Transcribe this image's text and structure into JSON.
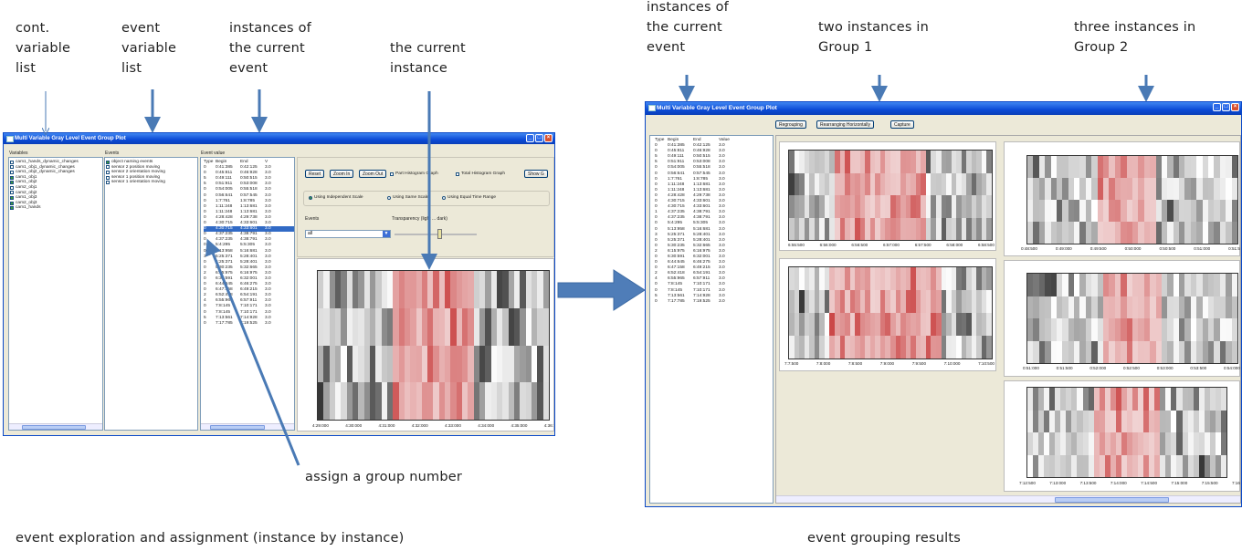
{
  "annotations": {
    "cont_var": [
      "cont.",
      "variable",
      "list"
    ],
    "event_var": [
      "event",
      "variable",
      "list"
    ],
    "instances": [
      "instances of",
      "the current",
      "event"
    ],
    "current_instance": [
      "the current",
      "instance"
    ],
    "instances_right": [
      "instances of",
      "the current",
      "event"
    ],
    "group1": [
      "two instances in",
      "Group 1"
    ],
    "group2": [
      "three instances in",
      "Group 2"
    ],
    "assign": "assign a group number",
    "caption_left": "event exploration and assignment  (instance by instance)",
    "caption_right": "event grouping results"
  },
  "left_window": {
    "title": "Multi Variable Gray Level Event Group Plot",
    "variables_label": "Variables",
    "events_label": "Events",
    "event_value_label": "Event value",
    "variables": [
      {
        "label": "cam1_hands_dynamic_changes",
        "checked": false
      },
      {
        "label": "cam1_obj1_dynamic_changes",
        "checked": false
      },
      {
        "label": "cam1_obj2_dynamic_changes",
        "checked": false
      },
      {
        "label": "cam1_obj1",
        "checked": true
      },
      {
        "label": "cam1_obj2",
        "checked": true
      },
      {
        "label": "cam2_obj1",
        "checked": false
      },
      {
        "label": "cam2_obj2",
        "checked": false
      },
      {
        "label": "cam1_obj3",
        "checked": true
      },
      {
        "label": "cam2_obj3",
        "checked": true
      },
      {
        "label": "cam1_hands",
        "checked": true
      }
    ],
    "events": [
      {
        "label": "object naming events",
        "checked": true
      },
      {
        "label": "sensor 2 position moving",
        "checked": false
      },
      {
        "label": "sensor 2 orientation moving",
        "checked": false
      },
      {
        "label": "sensor 1 position moving",
        "checked": false
      },
      {
        "label": "sensor 1 orientation moving",
        "checked": false
      }
    ],
    "table_headers": [
      "Type",
      "Begin",
      "End",
      "V"
    ],
    "table_rows": [
      [
        "0",
        "0:41:385",
        "0:42:125",
        "3.0"
      ],
      [
        "0",
        "0:45:811",
        "0:46:928",
        "3.0"
      ],
      [
        "5",
        "0:49:111",
        "0:50:515",
        "3.0"
      ],
      [
        "5",
        "0:51:911",
        "0:53:008",
        "3.0"
      ],
      [
        "0",
        "0:54:005",
        "0:55:518",
        "3.0"
      ],
      [
        "0",
        "0:56:641",
        "0:57:545",
        "3.0"
      ],
      [
        "0",
        "1:7:761",
        "1:8:785",
        "3.0"
      ],
      [
        "0",
        "1:11:248",
        "1:13:681",
        "3.0"
      ],
      [
        "0",
        "1:11:248",
        "1:13:681",
        "3.0"
      ],
      [
        "0",
        "4:28:428",
        "4:29:738",
        "3.0"
      ],
      [
        "0",
        "4:30:715",
        "4:33:601",
        "3.0"
      ],
      [
        "0",
        "4:30:715",
        "4:33:601",
        "3.0"
      ],
      [
        "0",
        "4:37:235",
        "4:38:791",
        "3.0"
      ],
      [
        "0",
        "4:37:235",
        "4:38:791",
        "3.0"
      ],
      [
        "0",
        "5:4:295",
        "5:5:305",
        "3.0"
      ],
      [
        "0",
        "5:13:958",
        "5:16:681",
        "3.0"
      ],
      [
        "3",
        "5:25:371",
        "5:28:401",
        "3.0"
      ],
      [
        "0",
        "5:25:371",
        "5:28:401",
        "3.0"
      ],
      [
        "0",
        "5:30:235",
        "5:32:665",
        "3.0"
      ],
      [
        "2",
        "6:15:975",
        "6:16:975",
        "3.0"
      ],
      [
        "0",
        "6:30:591",
        "6:32:001",
        "3.0"
      ],
      [
        "0",
        "6:44:645",
        "6:46:275",
        "3.0"
      ],
      [
        "0",
        "6:47:158",
        "6:49:215",
        "3.0"
      ],
      [
        "2",
        "6:52:418",
        "6:54:191",
        "3.0"
      ],
      [
        "4",
        "6:55:965",
        "6:57:911",
        "3.0"
      ],
      [
        "0",
        "7:8:145",
        "7:10:171",
        "3.0"
      ],
      [
        "0",
        "7:8:145",
        "7:10:171",
        "3.0"
      ],
      [
        "5",
        "7:13:561",
        "7:14:928",
        "3.0"
      ],
      [
        "0",
        "7:17:785",
        "7:19:525",
        "3.0"
      ]
    ],
    "selected_row": 11,
    "buttons": {
      "reset": "Reset",
      "zoom_in": "Zoom In",
      "zoom_out": "Zoom Out",
      "part_hist": "Part Histogram Graph",
      "total_hist": "Total Histogram Graph",
      "show": "Show G"
    },
    "scales": {
      "independent": "Using Independent Scale",
      "same": "Using Same Scale",
      "equal": "Using Equal Time Range"
    },
    "events_dropdown_label": "Events",
    "events_dropdown_value": "all",
    "transparency_label": "Transparency (light ... dark)",
    "x_ticks": [
      "4:29:000",
      "4:30:000",
      "4:31:000",
      "4:32:000",
      "4:33:000",
      "4:34:000",
      "4:35:000",
      "4:36:"
    ]
  },
  "right_window": {
    "title": "Multi Variable Gray Level Event Group Plot",
    "buttons": {
      "regrouping": "Regrouping",
      "rearranging": "Rearranging Horizontally",
      "capture": "Capture"
    },
    "table_headers": [
      "Type",
      "Begin",
      "End",
      "Value"
    ],
    "table_rows": [
      [
        "0",
        "0:41:385",
        "0:42:125",
        "3.0"
      ],
      [
        "0",
        "0:45:811",
        "0:46:928",
        "3.0"
      ],
      [
        "5",
        "0:49:111",
        "0:50:515",
        "3.0"
      ],
      [
        "5",
        "0:51:911",
        "0:53:008",
        "3.0"
      ],
      [
        "0",
        "0:54:005",
        "0:55:518",
        "3.0"
      ],
      [
        "0",
        "0:56:641",
        "0:57:545",
        "3.0"
      ],
      [
        "0",
        "1:7:761",
        "1:8:785",
        "3.0"
      ],
      [
        "0",
        "1:11:248",
        "1:13:681",
        "3.0"
      ],
      [
        "0",
        "1:11:248",
        "1:13:681",
        "3.0"
      ],
      [
        "0",
        "4:28:428",
        "4:29:738",
        "3.0"
      ],
      [
        "0",
        "4:30:715",
        "4:33:601",
        "3.0"
      ],
      [
        "0",
        "4:30:715",
        "4:33:601",
        "3.0"
      ],
      [
        "1",
        "4:37:235",
        "4:38:791",
        "3.0"
      ],
      [
        "0",
        "4:37:235",
        "4:38:791",
        "3.0"
      ],
      [
        "0",
        "5:4:295",
        "5:5:305",
        "3.0"
      ],
      [
        "0",
        "5:13:958",
        "5:16:681",
        "3.0"
      ],
      [
        "3",
        "5:25:371",
        "5:28:401",
        "3.0"
      ],
      [
        "0",
        "5:25:371",
        "5:28:401",
        "3.0"
      ],
      [
        "0",
        "5:30:235",
        "5:32:665",
        "3.0"
      ],
      [
        "2",
        "6:15:975",
        "6:16:975",
        "3.0"
      ],
      [
        "0",
        "6:30:591",
        "6:32:001",
        "3.0"
      ],
      [
        "0",
        "6:44:645",
        "6:46:275",
        "3.0"
      ],
      [
        "0",
        "6:47:158",
        "6:49:215",
        "3.0"
      ],
      [
        "2",
        "6:52:418",
        "6:54:191",
        "3.0"
      ],
      [
        "4",
        "6:55:965",
        "6:57:911",
        "3.0"
      ],
      [
        "0",
        "7:8:145",
        "7:10:171",
        "3.0"
      ],
      [
        "0",
        "7:8:145",
        "7:10:171",
        "3.0"
      ],
      [
        "5",
        "7:13:561",
        "7:14:928",
        "3.0"
      ],
      [
        "0",
        "7:17:785",
        "7:19:525",
        "3.0"
      ]
    ],
    "group1": [
      {
        "ticks": [
          "6:55:500",
          "6:56:000",
          "6:56:500",
          "6:57:000",
          "6:57:500",
          "6:58:000",
          "6:58:500"
        ]
      },
      {
        "ticks": [
          "7:7:500",
          "7:8:000",
          "7:8:500",
          "7:9:000",
          "7:9:500",
          "7:10:000",
          "7:10:500"
        ]
      }
    ],
    "group2": [
      {
        "ticks": [
          "0:48:500",
          "0:49:000",
          "0:49:500",
          "0:50:000",
          "0:50:500",
          "0:51:000",
          "0:51:5"
        ]
      },
      {
        "ticks": [
          "0:51:000",
          "0:51:500",
          "0:52:000",
          "0:52:500",
          "0:53:000",
          "0:53:500",
          "0:54:000"
        ]
      },
      {
        "ticks": [
          "7:12:500",
          "7:13:000",
          "7:13:500",
          "7:14:000",
          "7:14:500",
          "7:15:000",
          "7:15:500",
          "7:16"
        ]
      }
    ]
  }
}
